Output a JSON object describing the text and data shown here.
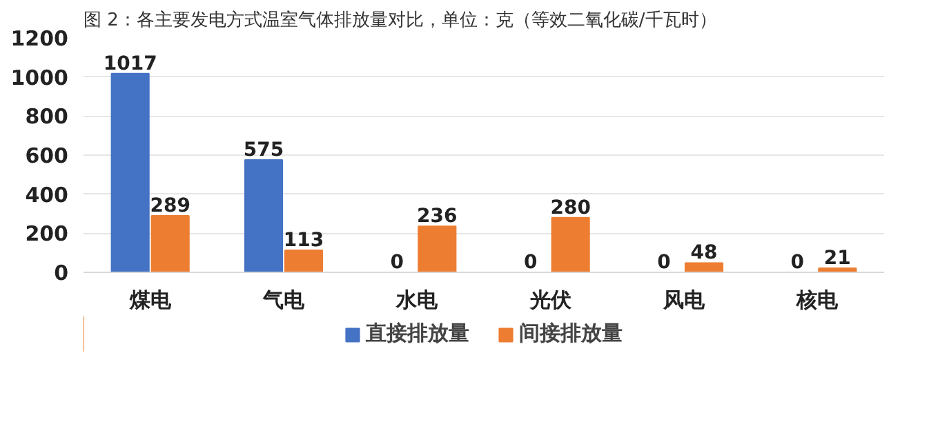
{
  "chart_data": {
    "type": "bar",
    "title": "图 2：各主要发电方式温室气体排放量对比，单位：克（等效二氧化碳/千瓦时）",
    "categories": [
      "煤电",
      "气电",
      "水电",
      "光伏",
      "风电",
      "核电"
    ],
    "series": [
      {
        "name": "直接排放量",
        "color": "#4472c4",
        "values": [
          1017,
          575,
          0,
          0,
          0,
          0
        ]
      },
      {
        "name": "间接排放量",
        "color": "#ed7d31",
        "values": [
          289,
          113,
          236,
          280,
          48,
          21
        ]
      }
    ],
    "ylim": [
      0,
      1200
    ],
    "yticks": [
      0,
      200,
      400,
      600,
      800,
      1000,
      1200
    ],
    "grid": "y",
    "legend": "bottom",
    "data_labels": true
  }
}
